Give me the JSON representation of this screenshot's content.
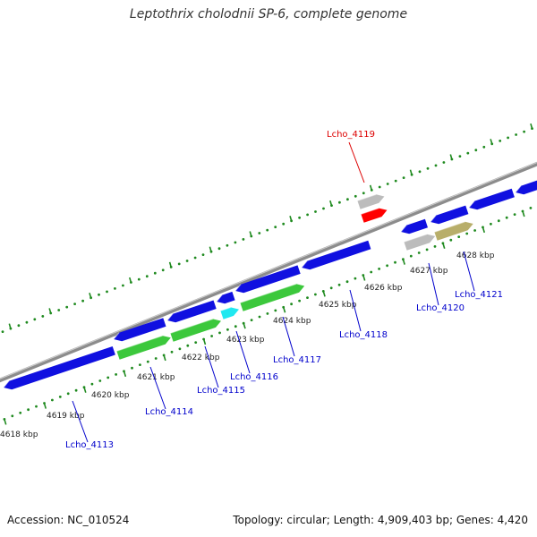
{
  "title": "Leptothrix cholodnii SP-6, complete genome",
  "footer": {
    "accession": "Accession: NC_010524",
    "summary": "Topology: circular; Length: 4,909,403 bp; Genes: 4,420"
  },
  "colors": {
    "backbone": "#8c8c8c",
    "tick": "#1f8a1f",
    "blue_gene": "#1010e0",
    "green_gene": "#3cc83c",
    "cyan_gene": "#20e8f0",
    "red_gene": "#ff0000",
    "grey_gene": "#bcbcbc",
    "olive_gene": "#b8ae6a",
    "blue_label": "#0000cc",
    "red_label": "#dd0000"
  },
  "scale_labels": [
    "4618 kbp",
    "4619 kbp",
    "4620 kbp",
    "4621 kbp",
    "4622 kbp",
    "4623 kbp",
    "4624 kbp",
    "4625 kbp",
    "4626 kbp",
    "4627 kbp",
    "4628 kbp"
  ],
  "gene_labels": [
    {
      "id": "lcho_4113",
      "text": "Lcho_4113",
      "color": "blue"
    },
    {
      "id": "lcho_4114",
      "text": "Lcho_4114",
      "color": "blue"
    },
    {
      "id": "lcho_4115",
      "text": "Lcho_4115",
      "color": "blue"
    },
    {
      "id": "lcho_4116",
      "text": "Lcho_4116",
      "color": "blue"
    },
    {
      "id": "lcho_4117",
      "text": "Lcho_4117",
      "color": "blue"
    },
    {
      "id": "lcho_4118",
      "text": "Lcho_4118",
      "color": "blue"
    },
    {
      "id": "lcho_4119",
      "text": "Lcho_4119",
      "color": "red"
    },
    {
      "id": "lcho_4120",
      "text": "Lcho_4120",
      "color": "blue"
    },
    {
      "id": "lcho_4121",
      "text": "Lcho_4121",
      "color": "blue"
    }
  ]
}
